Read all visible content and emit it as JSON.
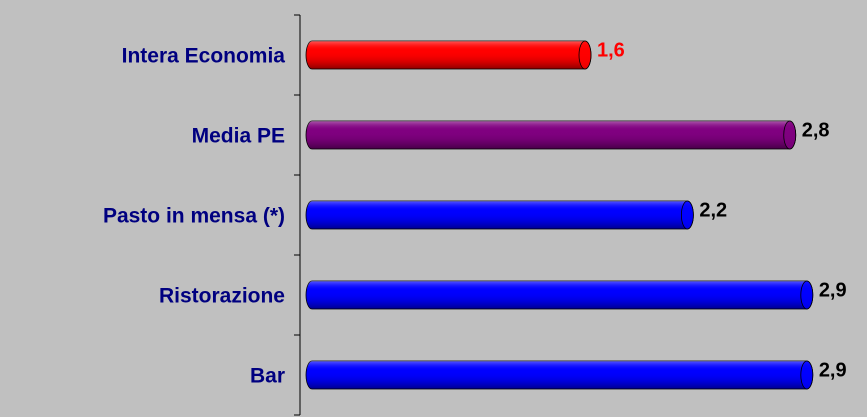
{
  "chart_data": {
    "type": "hbar",
    "categories": [
      "Intera Economia",
      "Media PE",
      "Pasto in mensa (*)",
      "Ristorazione",
      "Bar"
    ],
    "values": [
      1.6,
      2.8,
      2.2,
      2.9,
      2.9
    ],
    "value_labels": [
      "1,6",
      "2,8",
      "2,2",
      "2,9",
      "2,9"
    ],
    "colors": [
      "#ff0000",
      "#800080",
      "#0000ff",
      "#0000ff",
      "#0000ff"
    ],
    "value_label_colors": [
      "#ff0000",
      "#000000",
      "#000000",
      "#000000",
      "#000000"
    ],
    "xlim": [
      0,
      3.2
    ]
  }
}
